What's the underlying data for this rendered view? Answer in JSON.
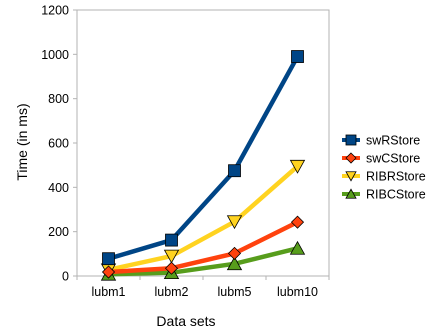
{
  "chart_data": {
    "type": "line",
    "xlabel": "Data sets",
    "ylabel": "Time (in ms)",
    "categories": [
      "lubm1",
      "lubm2",
      "lubm5",
      "lubm10"
    ],
    "ylim": [
      0,
      1200
    ],
    "yticks": [
      0,
      200,
      400,
      600,
      800,
      1000,
      1200
    ],
    "grid": false,
    "legend_position": "right",
    "series": [
      {
        "name": "swRStore",
        "values": [
          78,
          162,
          475,
          990
        ],
        "color": "#004586",
        "marker": "square"
      },
      {
        "name": "swCStore",
        "values": [
          18,
          35,
          102,
          243
        ],
        "color": "#ff420e",
        "marker": "diamond"
      },
      {
        "name": "RIBRStore",
        "values": [
          28,
          90,
          245,
          495
        ],
        "color": "#ffd320",
        "marker": "triangle-down"
      },
      {
        "name": "RIBCStore",
        "values": [
          8,
          15,
          55,
          125
        ],
        "color": "#579d1c",
        "marker": "triangle-up"
      }
    ]
  }
}
